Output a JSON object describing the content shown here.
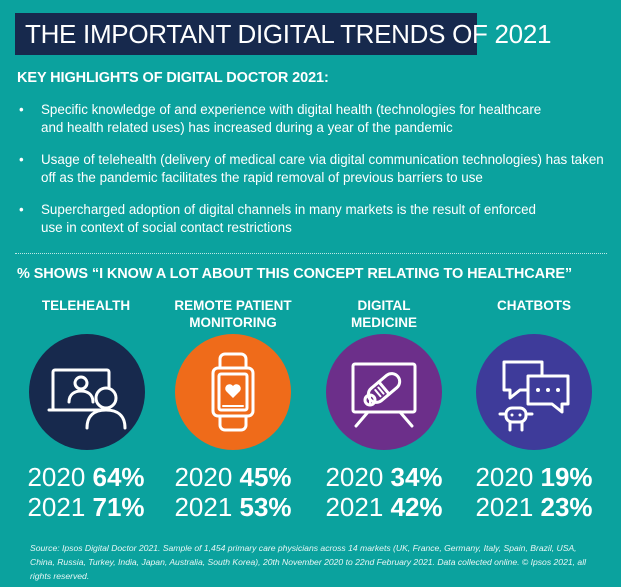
{
  "title": "THE IMPORTANT DIGITAL TRENDS OF 2021",
  "subheading": "KEY HIGHLIGHTS OF DIGITAL DOCTOR 2021:",
  "bullets": [
    {
      "line1": "Specific knowledge of and experience with digital health (technologies for healthcare",
      "line2": "and health related uses) has increased during a year of the pandemic"
    },
    {
      "line1": "Usage of telehealth (delivery of medical care via digital communication technologies) has taken",
      "line2": "off as the pandemic facilitates the rapid removal of previous barriers to use"
    },
    {
      "line1": "Supercharged adoption of digital channels in many markets is the result of enforced",
      "line2": "use in context of social contact restrictions"
    }
  ],
  "bullet_symbol": "•",
  "chart_data": {
    "type": "table",
    "title": "% SHOWS “I KNOW A LOT ABOUT THIS CONCEPT RELATING TO HEALTHCARE”",
    "categories": [
      {
        "line1": "TELEHEALTH",
        "line2": ""
      },
      {
        "line1": "REMOTE PATIENT",
        "line2": "MONITORING"
      },
      {
        "line1": "DIGITAL",
        "line2": "MEDICINE"
      },
      {
        "line1": "CHATBOTS",
        "line2": ""
      }
    ],
    "series": [
      {
        "name": "2020",
        "values": [
          "64%",
          "45%",
          "34%",
          "19%"
        ]
      },
      {
        "name": "2021",
        "values": [
          "71%",
          "53%",
          "42%",
          "23%"
        ]
      }
    ],
    "icons": [
      "video-call-doctor-icon",
      "wearable-heart-monitor-icon",
      "pill-on-monitor-icon",
      "chatbot-robot-icon"
    ],
    "circle_colors": [
      "#17294d",
      "#ef6b1a",
      "#6c2f8a",
      "#3e3b9a"
    ]
  },
  "source": "Source: Ipsos Digital Doctor 2021. Sample of 1,454 primary care physicians across 14 markets (UK, France, Germany, Italy, Spain, Brazil, USA, China, Russia, Turkey, India, Japan, Australia, South Korea), 20th November 2020 to 22nd February 2021. Data collected online. © Ipsos 2021, all rights reserved."
}
